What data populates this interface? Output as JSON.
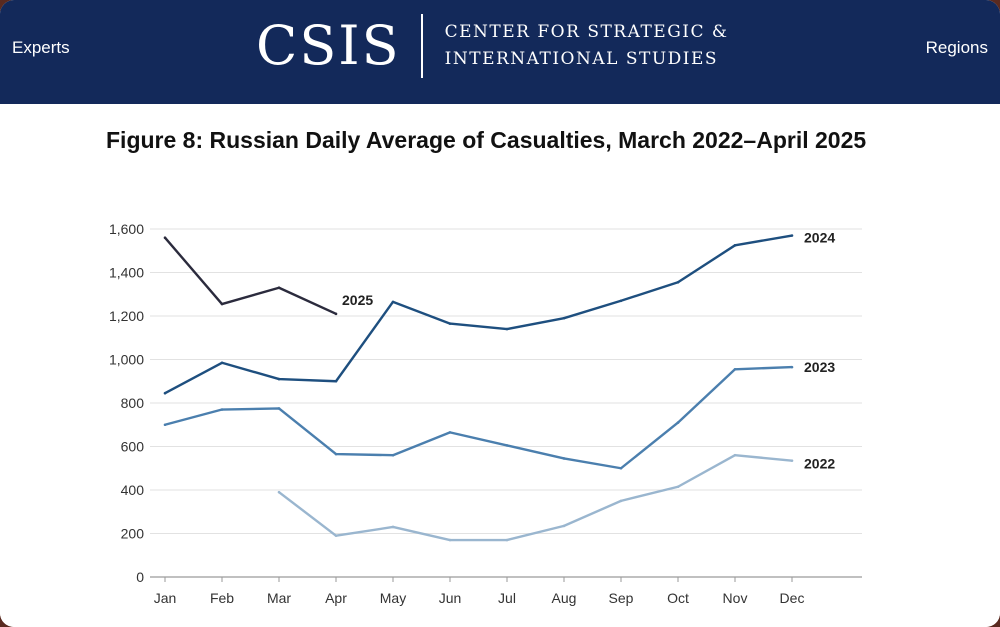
{
  "header": {
    "left_link": "Experts",
    "right_link": "Regions",
    "logo_mark": "CSIS",
    "logo_line1": "CENTER FOR STRATEGIC &",
    "logo_line2": "INTERNATIONAL STUDIES",
    "background": "#13295a"
  },
  "chart_data": {
    "type": "line",
    "title": "Figure 8: Russian Daily Average of Casualties, March 2022–April 2025",
    "xlabel": "",
    "ylabel": "",
    "categories": [
      "Jan",
      "Feb",
      "Mar",
      "Apr",
      "May",
      "Jun",
      "Jul",
      "Aug",
      "Sep",
      "Oct",
      "Nov",
      "Dec"
    ],
    "ylim": [
      0,
      1600
    ],
    "yticks": [
      0,
      200,
      400,
      600,
      800,
      1000,
      1200,
      1400,
      1600
    ],
    "ytick_labels": [
      "0",
      "200",
      "400",
      "600",
      "800",
      "1,000",
      "1,200",
      "1,400",
      "1,600"
    ],
    "grid": true,
    "series": [
      {
        "name": "2022",
        "color": "#9ab6cf",
        "values": [
          null,
          null,
          390,
          190,
          230,
          170,
          170,
          235,
          350,
          415,
          560,
          535
        ]
      },
      {
        "name": "2023",
        "color": "#4b7fae",
        "values": [
          700,
          770,
          775,
          565,
          560,
          665,
          605,
          545,
          500,
          710,
          955,
          965
        ]
      },
      {
        "name": "2024",
        "color": "#1e4f7f",
        "values": [
          845,
          985,
          910,
          900,
          1265,
          1165,
          1140,
          1190,
          1270,
          1355,
          1525,
          1570
        ]
      },
      {
        "name": "2025",
        "color": "#2b2b3d",
        "values": [
          1560,
          1255,
          1330,
          1210,
          null,
          null,
          null,
          null,
          null,
          null,
          null,
          null
        ]
      }
    ]
  }
}
